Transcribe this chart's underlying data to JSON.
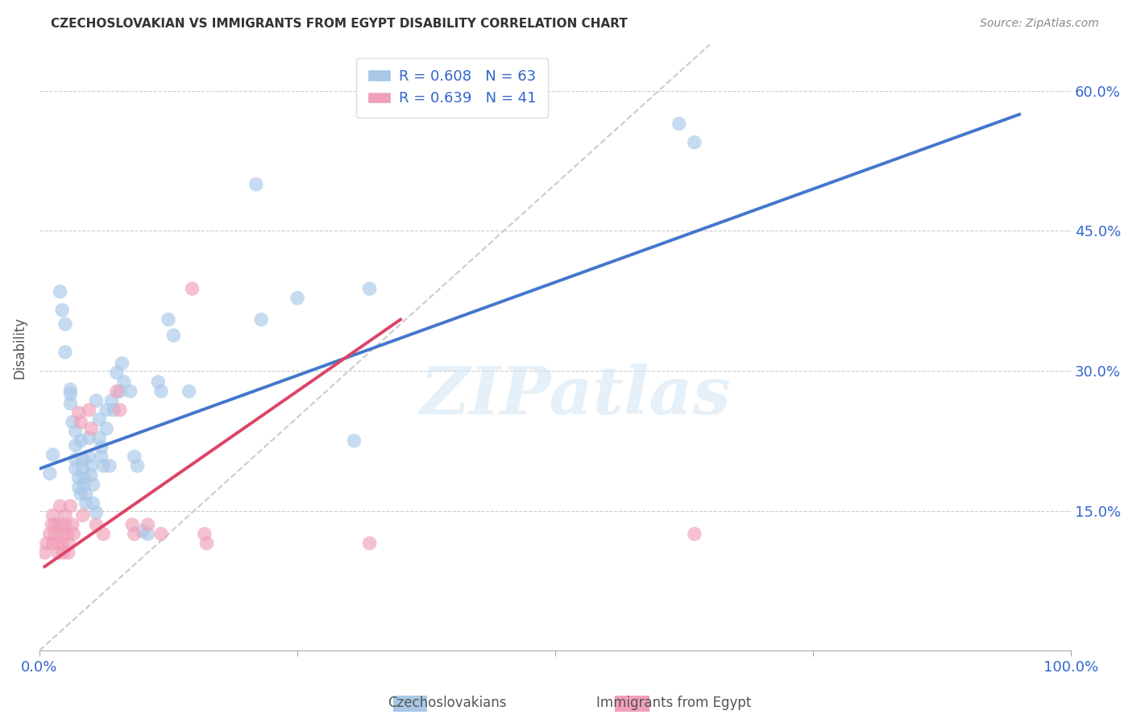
{
  "title": "CZECHOSLOVAKIAN VS IMMIGRANTS FROM EGYPT DISABILITY CORRELATION CHART",
  "source": "Source: ZipAtlas.com",
  "ylabel": "Disability",
  "xlim": [
    0.0,
    1.0
  ],
  "ylim": [
    0.0,
    0.65
  ],
  "xticks": [
    0.0,
    0.25,
    0.5,
    0.75,
    1.0
  ],
  "xticklabels": [
    "0.0%",
    "",
    "",
    "",
    "100.0%"
  ],
  "yticks": [
    0.15,
    0.3,
    0.45,
    0.6
  ],
  "yticklabels": [
    "15.0%",
    "30.0%",
    "45.0%",
    "60.0%"
  ],
  "legend_entries": [
    {
      "label": "R = 0.608   N = 63",
      "color": "#A8C8E8"
    },
    {
      "label": "R = 0.639   N = 41",
      "color": "#F0A0B8"
    }
  ],
  "blue_color": "#A8C8E8",
  "pink_color": "#F0A0B8",
  "blue_line_color": "#4477CC",
  "pink_line_color": "#DD4466",
  "watermark_text": "ZIPatlas",
  "blue_scatter": [
    [
      0.01,
      0.19
    ],
    [
      0.013,
      0.21
    ],
    [
      0.02,
      0.385
    ],
    [
      0.022,
      0.365
    ],
    [
      0.025,
      0.35
    ],
    [
      0.025,
      0.32
    ],
    [
      0.03,
      0.28
    ],
    [
      0.03,
      0.275
    ],
    [
      0.03,
      0.265
    ],
    [
      0.032,
      0.245
    ],
    [
      0.035,
      0.235
    ],
    [
      0.035,
      0.22
    ],
    [
      0.035,
      0.205
    ],
    [
      0.035,
      0.195
    ],
    [
      0.038,
      0.185
    ],
    [
      0.038,
      0.175
    ],
    [
      0.04,
      0.168
    ],
    [
      0.04,
      0.225
    ],
    [
      0.042,
      0.205
    ],
    [
      0.042,
      0.195
    ],
    [
      0.043,
      0.185
    ],
    [
      0.043,
      0.178
    ],
    [
      0.045,
      0.168
    ],
    [
      0.045,
      0.158
    ],
    [
      0.048,
      0.228
    ],
    [
      0.048,
      0.208
    ],
    [
      0.05,
      0.198
    ],
    [
      0.05,
      0.188
    ],
    [
      0.052,
      0.178
    ],
    [
      0.052,
      0.158
    ],
    [
      0.055,
      0.148
    ],
    [
      0.055,
      0.268
    ],
    [
      0.058,
      0.248
    ],
    [
      0.058,
      0.228
    ],
    [
      0.06,
      0.218
    ],
    [
      0.06,
      0.208
    ],
    [
      0.062,
      0.198
    ],
    [
      0.065,
      0.258
    ],
    [
      0.065,
      0.238
    ],
    [
      0.068,
      0.198
    ],
    [
      0.07,
      0.268
    ],
    [
      0.072,
      0.258
    ],
    [
      0.075,
      0.298
    ],
    [
      0.078,
      0.278
    ],
    [
      0.08,
      0.308
    ],
    [
      0.082,
      0.288
    ],
    [
      0.088,
      0.278
    ],
    [
      0.092,
      0.208
    ],
    [
      0.095,
      0.198
    ],
    [
      0.1,
      0.128
    ],
    [
      0.105,
      0.125
    ],
    [
      0.115,
      0.288
    ],
    [
      0.118,
      0.278
    ],
    [
      0.125,
      0.355
    ],
    [
      0.13,
      0.338
    ],
    [
      0.145,
      0.278
    ],
    [
      0.21,
      0.5
    ],
    [
      0.215,
      0.355
    ],
    [
      0.25,
      0.378
    ],
    [
      0.305,
      0.225
    ],
    [
      0.32,
      0.388
    ],
    [
      0.62,
      0.565
    ],
    [
      0.635,
      0.545
    ]
  ],
  "pink_scatter": [
    [
      0.005,
      0.105
    ],
    [
      0.007,
      0.115
    ],
    [
      0.01,
      0.125
    ],
    [
      0.012,
      0.135
    ],
    [
      0.013,
      0.145
    ],
    [
      0.013,
      0.115
    ],
    [
      0.015,
      0.135
    ],
    [
      0.015,
      0.125
    ],
    [
      0.018,
      0.115
    ],
    [
      0.018,
      0.105
    ],
    [
      0.02,
      0.155
    ],
    [
      0.02,
      0.135
    ],
    [
      0.022,
      0.125
    ],
    [
      0.022,
      0.115
    ],
    [
      0.023,
      0.105
    ],
    [
      0.025,
      0.145
    ],
    [
      0.025,
      0.135
    ],
    [
      0.027,
      0.125
    ],
    [
      0.028,
      0.115
    ],
    [
      0.028,
      0.105
    ],
    [
      0.03,
      0.155
    ],
    [
      0.032,
      0.135
    ],
    [
      0.033,
      0.125
    ],
    [
      0.038,
      0.255
    ],
    [
      0.04,
      0.245
    ],
    [
      0.042,
      0.145
    ],
    [
      0.048,
      0.258
    ],
    [
      0.05,
      0.238
    ],
    [
      0.055,
      0.135
    ],
    [
      0.062,
      0.125
    ],
    [
      0.075,
      0.278
    ],
    [
      0.078,
      0.258
    ],
    [
      0.09,
      0.135
    ],
    [
      0.092,
      0.125
    ],
    [
      0.105,
      0.135
    ],
    [
      0.118,
      0.125
    ],
    [
      0.148,
      0.388
    ],
    [
      0.16,
      0.125
    ],
    [
      0.162,
      0.115
    ],
    [
      0.32,
      0.115
    ],
    [
      0.635,
      0.125
    ]
  ],
  "blue_line": {
    "x0": 0.0,
    "y0": 0.195,
    "x1": 0.95,
    "y1": 0.575
  },
  "pink_line": {
    "x0": 0.005,
    "y0": 0.09,
    "x1": 0.35,
    "y1": 0.355
  },
  "diag_line": {
    "x0": 0.0,
    "y0": 0.0,
    "x1": 0.65,
    "y1": 0.65
  }
}
